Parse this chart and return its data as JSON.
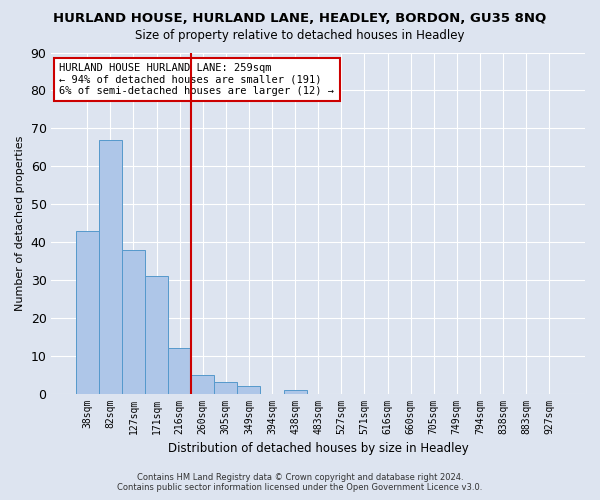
{
  "title": "HURLAND HOUSE, HURLAND LANE, HEADLEY, BORDON, GU35 8NQ",
  "subtitle": "Size of property relative to detached houses in Headley",
  "xlabel": "Distribution of detached houses by size in Headley",
  "ylabel": "Number of detached properties",
  "bin_labels": [
    "38sqm",
    "82sqm",
    "127sqm",
    "171sqm",
    "216sqm",
    "260sqm",
    "305sqm",
    "349sqm",
    "394sqm",
    "438sqm",
    "483sqm",
    "527sqm",
    "571sqm",
    "616sqm",
    "660sqm",
    "705sqm",
    "749sqm",
    "794sqm",
    "838sqm",
    "883sqm",
    "927sqm"
  ],
  "bar_heights": [
    43,
    67,
    38,
    31,
    12,
    5,
    3,
    2,
    0,
    1,
    0,
    0,
    0,
    0,
    0,
    0,
    0,
    0,
    0,
    0,
    0
  ],
  "bar_color": "#aec6e8",
  "bar_edge_color": "#5599cc",
  "vline_position": 4.5,
  "vline_color": "#cc0000",
  "ylim": [
    0,
    90
  ],
  "yticks": [
    0,
    10,
    20,
    30,
    40,
    50,
    60,
    70,
    80,
    90
  ],
  "annotation_title": "HURLAND HOUSE HURLAND LANE: 259sqm",
  "annotation_line1": "← 94% of detached houses are smaller (191)",
  "annotation_line2": "6% of semi-detached houses are larger (12) →",
  "annotation_box_color": "#ffffff",
  "annotation_box_edge": "#cc0000",
  "footer1": "Contains HM Land Registry data © Crown copyright and database right 2024.",
  "footer2": "Contains public sector information licensed under the Open Government Licence v3.0.",
  "bg_color": "#dde4f0",
  "plot_bg_color": "#dde4f0",
  "grid_color": "#ffffff"
}
